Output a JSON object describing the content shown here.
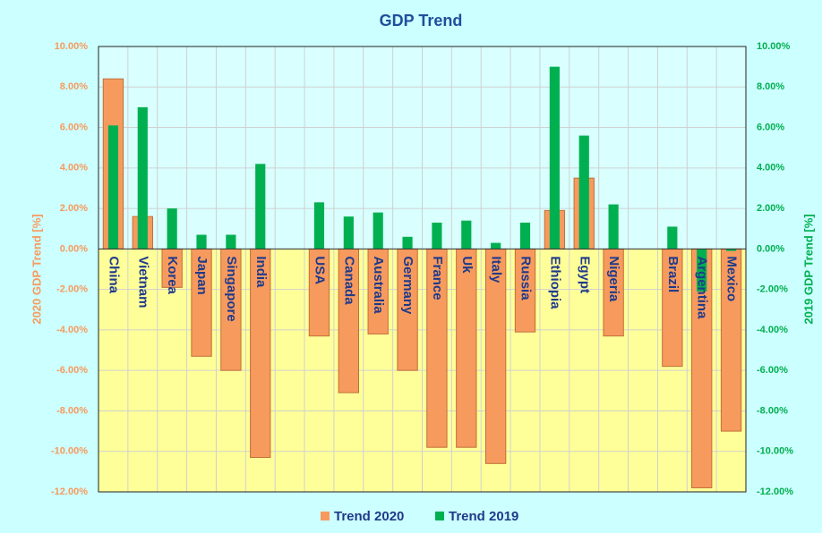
{
  "chart_data": {
    "type": "bar",
    "title": "GDP Trend",
    "ylabel": "2020 GDP Trend [%]",
    "y2label": "2019 GDP Trend [%]",
    "categories": [
      "China",
      "Vietnam",
      "Korea",
      "Japan",
      "Singapore",
      "India",
      null,
      "USA",
      "Canada",
      "Australia",
      "Germany",
      "France",
      "Uk",
      "Italy",
      "Russia",
      "Ethiopia",
      "Egypt",
      "Nigeria",
      null,
      "Brazil",
      "Argentina",
      "Mexico"
    ],
    "series": [
      {
        "name": "Trend 2020",
        "color": "#f79a5e",
        "values": [
          8.4,
          1.6,
          -1.9,
          -5.3,
          -6.0,
          -10.3,
          null,
          -4.3,
          -7.1,
          -4.2,
          -6.0,
          -9.8,
          -9.8,
          -10.6,
          -4.1,
          1.9,
          3.5,
          -4.3,
          null,
          -5.8,
          -11.8,
          -9.0
        ]
      },
      {
        "name": "Trend 2019",
        "color": "#00b050",
        "axis": "y2",
        "values": [
          6.1,
          7.0,
          2.0,
          0.7,
          0.7,
          4.2,
          null,
          2.3,
          1.6,
          1.8,
          0.6,
          1.3,
          1.4,
          0.3,
          1.3,
          9.0,
          5.6,
          2.2,
          null,
          1.1,
          -2.1,
          -0.1
        ]
      }
    ],
    "ylim": [
      -12,
      10
    ],
    "yticks": [
      {
        "value": -12,
        "label": "-12.00%"
      },
      {
        "value": -10,
        "label": "-10.00%"
      },
      {
        "value": -8,
        "label": "-8.00%"
      },
      {
        "value": -6,
        "label": "-6.00%"
      },
      {
        "value": -4,
        "label": "-4.00%"
      },
      {
        "value": -2,
        "label": "-2.00%"
      },
      {
        "value": 0,
        "label": "0.00%"
      },
      {
        "value": 2,
        "label": "2.00%"
      },
      {
        "value": 4,
        "label": "4.00%"
      },
      {
        "value": 6,
        "label": "6.00%"
      },
      {
        "value": 8,
        "label": "8.00%"
      },
      {
        "value": 10,
        "label": "10.00%"
      }
    ],
    "y2lim": [
      -12,
      10
    ],
    "y2ticks": [
      {
        "value": -12,
        "label": "-12.00%"
      },
      {
        "value": -10,
        "label": "-10.00%"
      },
      {
        "value": -8,
        "label": "-8.00%"
      },
      {
        "value": -6,
        "label": "-6.00%"
      },
      {
        "value": -4,
        "label": "-4.00%"
      },
      {
        "value": -2,
        "label": "-2.00%"
      },
      {
        "value": 0,
        "label": "0.00%"
      },
      {
        "value": 2,
        "label": "2.00%"
      },
      {
        "value": 4,
        "label": "4.00%"
      },
      {
        "value": 6,
        "label": "6.00%"
      },
      {
        "value": 8,
        "label": "8.00%"
      },
      {
        "value": 10,
        "label": "10.00%"
      }
    ],
    "grid": true,
    "legend": "bottom"
  }
}
